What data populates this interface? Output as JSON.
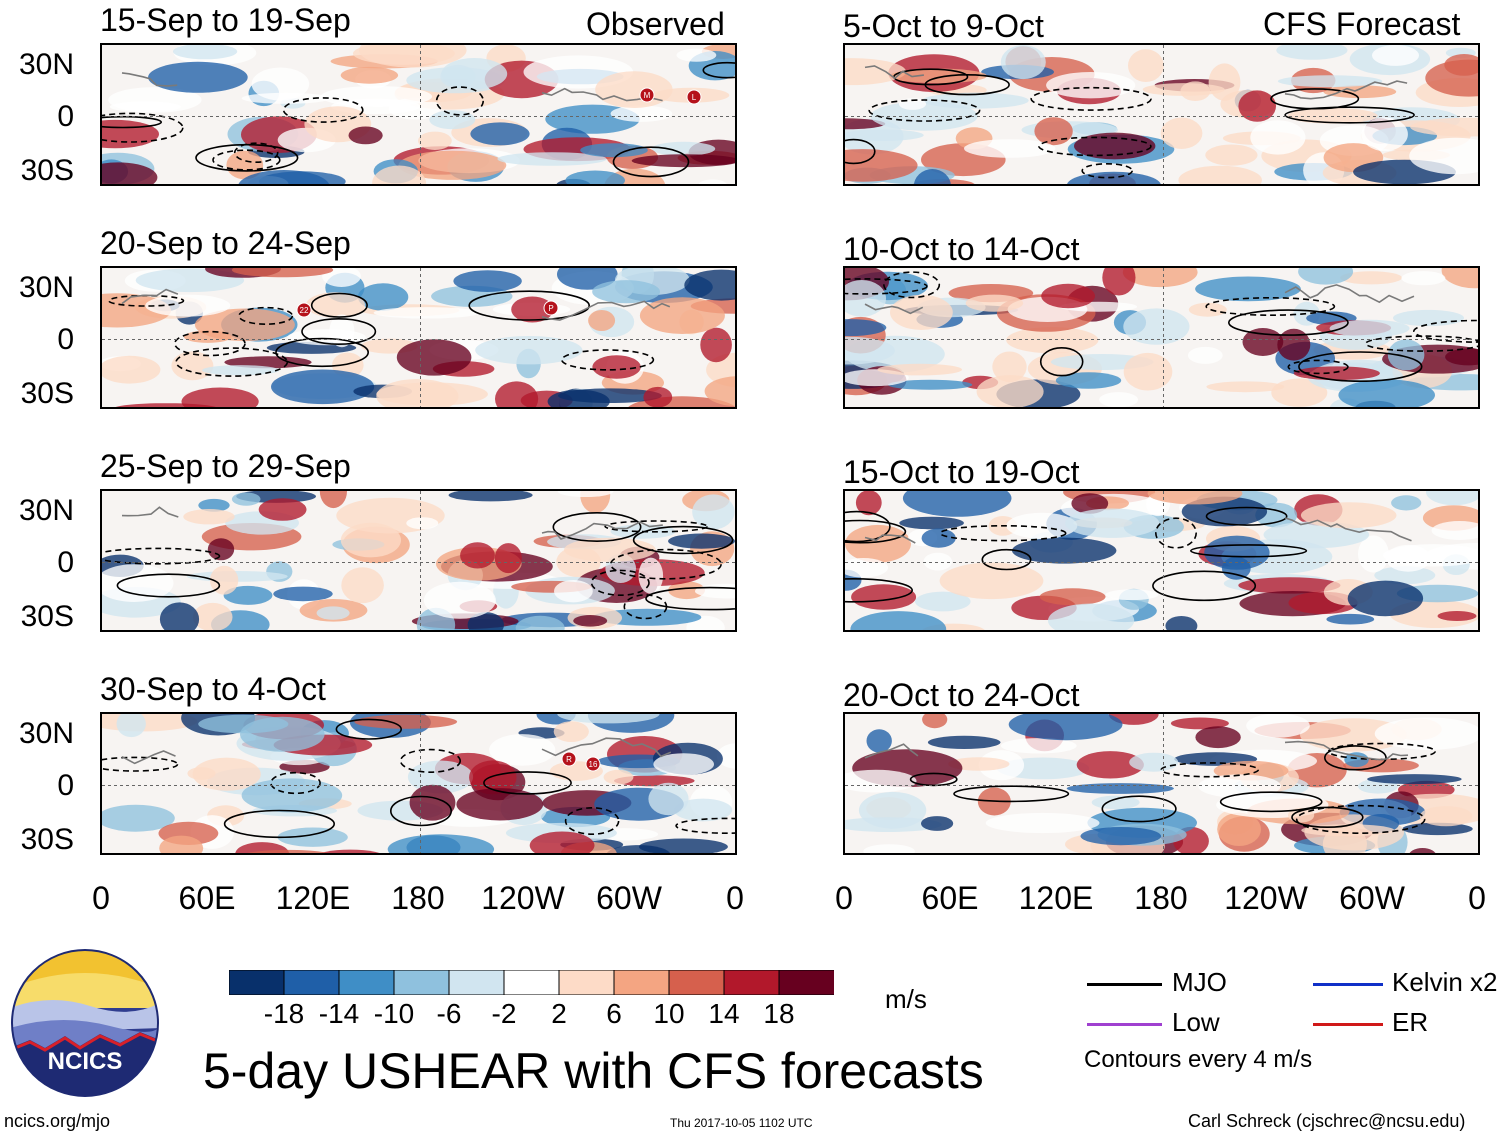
{
  "observed_label": "Observed",
  "forecast_label": "CFS Forecast",
  "left_panels": [
    {
      "title": "15-Sep to 19-Sep",
      "storms": [
        "M",
        "L"
      ]
    },
    {
      "title": "20-Sep to 24-Sep",
      "storms": [
        "22",
        "P"
      ]
    },
    {
      "title": "25-Sep to 29-Sep",
      "storms": []
    },
    {
      "title": "30-Sep to 4-Oct",
      "storms": [
        "R",
        "16"
      ]
    }
  ],
  "right_panels": [
    {
      "title": "5-Oct to 9-Oct"
    },
    {
      "title": "10-Oct to 14-Oct"
    },
    {
      "title": "15-Oct to 19-Oct"
    },
    {
      "title": "20-Oct to 24-Oct"
    }
  ],
  "lat_labels": [
    "30N",
    "0",
    "30S"
  ],
  "lon_labels": [
    "0",
    "60E",
    "120E",
    "180",
    "120W",
    "60W",
    "0"
  ],
  "colorbar": {
    "labels": [
      "-18",
      "-14",
      "-10",
      "-6",
      "-2",
      "2",
      "6",
      "10",
      "14",
      "18"
    ],
    "units": "m/s",
    "colors": [
      "#08306b",
      "#1f5fa8",
      "#3f8ec6",
      "#8fc1de",
      "#d1e5f0",
      "#ffffff",
      "#fddbc7",
      "#f4a582",
      "#d6604d",
      "#b2182b",
      "#67001f"
    ]
  },
  "legend": {
    "items": [
      {
        "label": "MJO",
        "color": "#000000"
      },
      {
        "label": "Kelvin x2",
        "color": "#1030c8"
      },
      {
        "label": "Low",
        "color": "#a040d0"
      },
      {
        "label": "ER",
        "color": "#d01818"
      }
    ],
    "note": "Contours every 4 m/s"
  },
  "main_title": "5-day USHEAR with CFS forecasts",
  "logo_text": "NCICS",
  "url": "ncics.org/mjo",
  "timestamp": "Thu 2017-10-05 1102 UTC",
  "credit": "Carl Schreck (cjschrec@ncsu.edu)"
}
